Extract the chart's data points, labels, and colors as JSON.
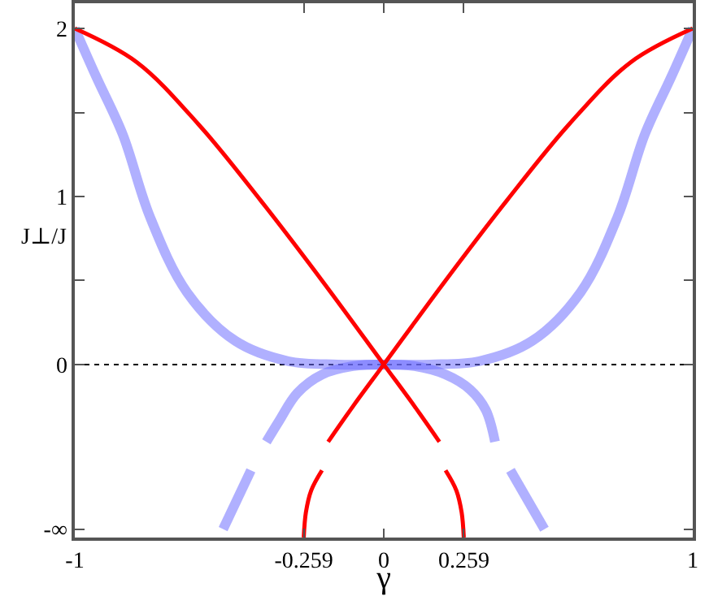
{
  "chart_data": {
    "type": "line",
    "xlabel": "γ",
    "ylabel": "J⊥/J",
    "xlim": [
      -1,
      1
    ],
    "xticks": [
      -1,
      -0.259,
      0,
      0.259,
      1
    ],
    "ylim": [
      -1.03,
      2.15
    ],
    "yticks": [
      {
        "value": -0.98,
        "label": "-∞"
      },
      0,
      {
        "value": 0.5,
        "label": null
      },
      1,
      {
        "value": 1.5,
        "label": null
      },
      2
    ],
    "grid": false,
    "marker": "none",
    "line_style": "solid",
    "ref_lines": [
      {
        "axis": "y",
        "value": 0,
        "label": null,
        "color": "#000000",
        "line_style": "dotted"
      }
    ],
    "series": [
      {
        "color": "#7070ff",
        "x": [
          -1,
          -0.93,
          -0.845,
          -0.757,
          -0.637,
          -0.48,
          -0.31,
          -0.15,
          0,
          0.15,
          0.31,
          0.48,
          0.637,
          0.757,
          0.845,
          0.93,
          1
        ],
        "values": [
          2,
          1.71,
          1.37,
          0.88,
          0.43,
          0.14,
          0.02,
          0,
          0,
          0,
          0.02,
          0.14,
          0.43,
          0.88,
          1.37,
          1.71,
          2
        ]
      },
      {
        "color": "#7070ff",
        "x": [
          -0.52,
          -0.43,
          null,
          -0.38,
          -0.34,
          -0.28,
          -0.2,
          -0.1,
          0,
          0.1,
          0.2,
          0.28,
          0.33,
          0.36,
          null,
          0.41,
          0.52
        ],
        "values": [
          -0.98,
          -0.63,
          null,
          -0.46,
          -0.34,
          -0.17,
          -0.06,
          -0.01,
          0,
          -0.01,
          -0.06,
          -0.15,
          -0.27,
          -0.46,
          null,
          -0.63,
          -0.98
        ]
      },
      {
        "color": "#ff0000",
        "x": [
          -1,
          -0.8,
          -0.6,
          -0.4,
          -0.2,
          0,
          0.1,
          0.18,
          null,
          0.2,
          0.235,
          0.252,
          0.259
        ],
        "values": [
          2,
          1.8,
          1.43,
          0.98,
          0.5,
          0,
          -0.25,
          -0.46,
          null,
          -0.63,
          -0.75,
          -0.88,
          -1.03
        ]
      },
      {
        "color": "#ff0000",
        "x": [
          1,
          0.8,
          0.6,
          0.4,
          0.2,
          0,
          -0.1,
          -0.18,
          null,
          -0.2,
          -0.235,
          -0.252,
          -0.259
        ],
        "values": [
          2,
          1.8,
          1.43,
          0.98,
          0.5,
          0,
          -0.25,
          -0.46,
          null,
          -0.63,
          -0.75,
          -0.88,
          -1.03
        ]
      }
    ]
  }
}
